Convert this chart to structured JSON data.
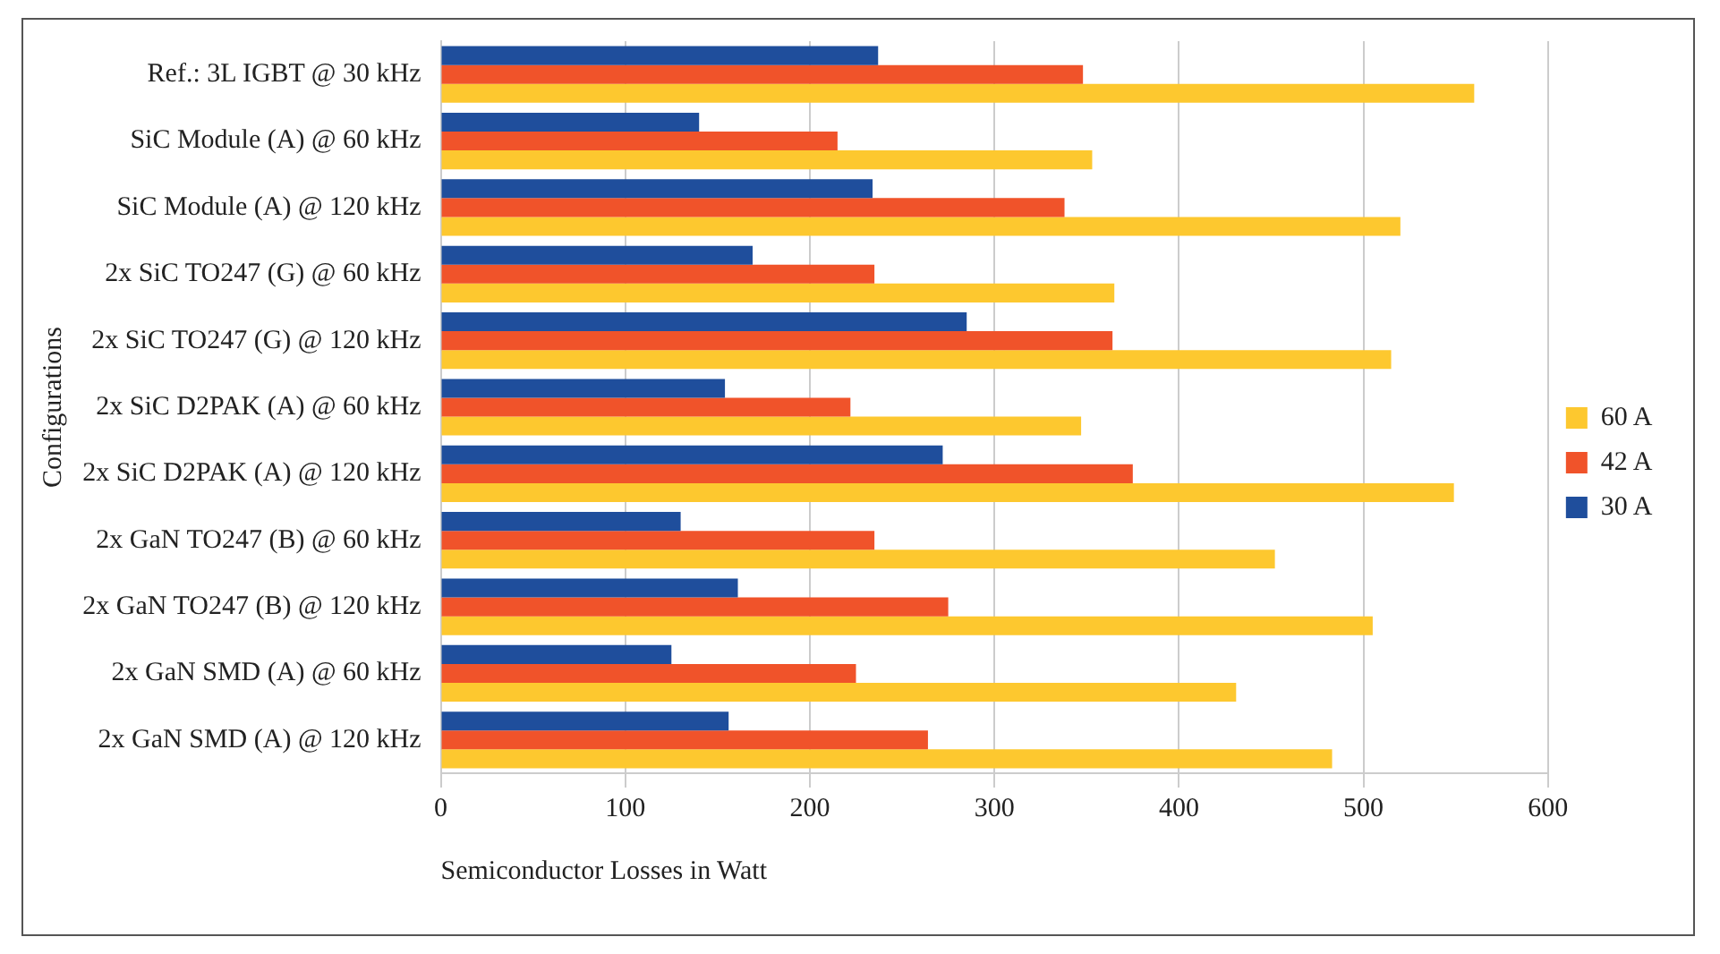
{
  "chart_data": {
    "type": "bar",
    "orientation": "horizontal",
    "xlabel": "Semiconductor Losses in Watt",
    "ylabel": "Configurations",
    "categories": [
      "Ref.: 3L IGBT @ 30 kHz",
      "SiC Module (A) @ 60 kHz",
      "SiC Module (A) @ 120 kHz",
      "2x SiC TO247 (G) @ 60 kHz",
      "2x SiC TO247 (G) @ 120 kHz",
      "2x SiC D2PAK (A) @ 60 kHz",
      "2x SiC D2PAK (A) @ 120 kHz",
      "2x GaN TO247 (B) @ 60 kHz",
      "2x GaN TO247 (B) @ 120 kHz",
      "2x GaN SMD (A) @ 60 kHz",
      "2x GaN SMD (A) @ 120 kHz"
    ],
    "series": [
      {
        "name": "30 A",
        "color": "#1f4e9c",
        "values": [
          237,
          140,
          234,
          169,
          285,
          154,
          272,
          130,
          161,
          125,
          156
        ]
      },
      {
        "name": "42 A",
        "color": "#f0532a",
        "values": [
          348,
          215,
          338,
          235,
          364,
          222,
          375,
          235,
          275,
          225,
          264
        ]
      },
      {
        "name": "60 A",
        "color": "#fdc82f",
        "values": [
          560,
          353,
          520,
          365,
          515,
          347,
          549,
          452,
          505,
          431,
          483
        ]
      }
    ],
    "xlim": [
      0,
      600
    ],
    "xticks": [
      0,
      100,
      200,
      300,
      400,
      500,
      600
    ],
    "grid": "x",
    "legend": "right"
  }
}
